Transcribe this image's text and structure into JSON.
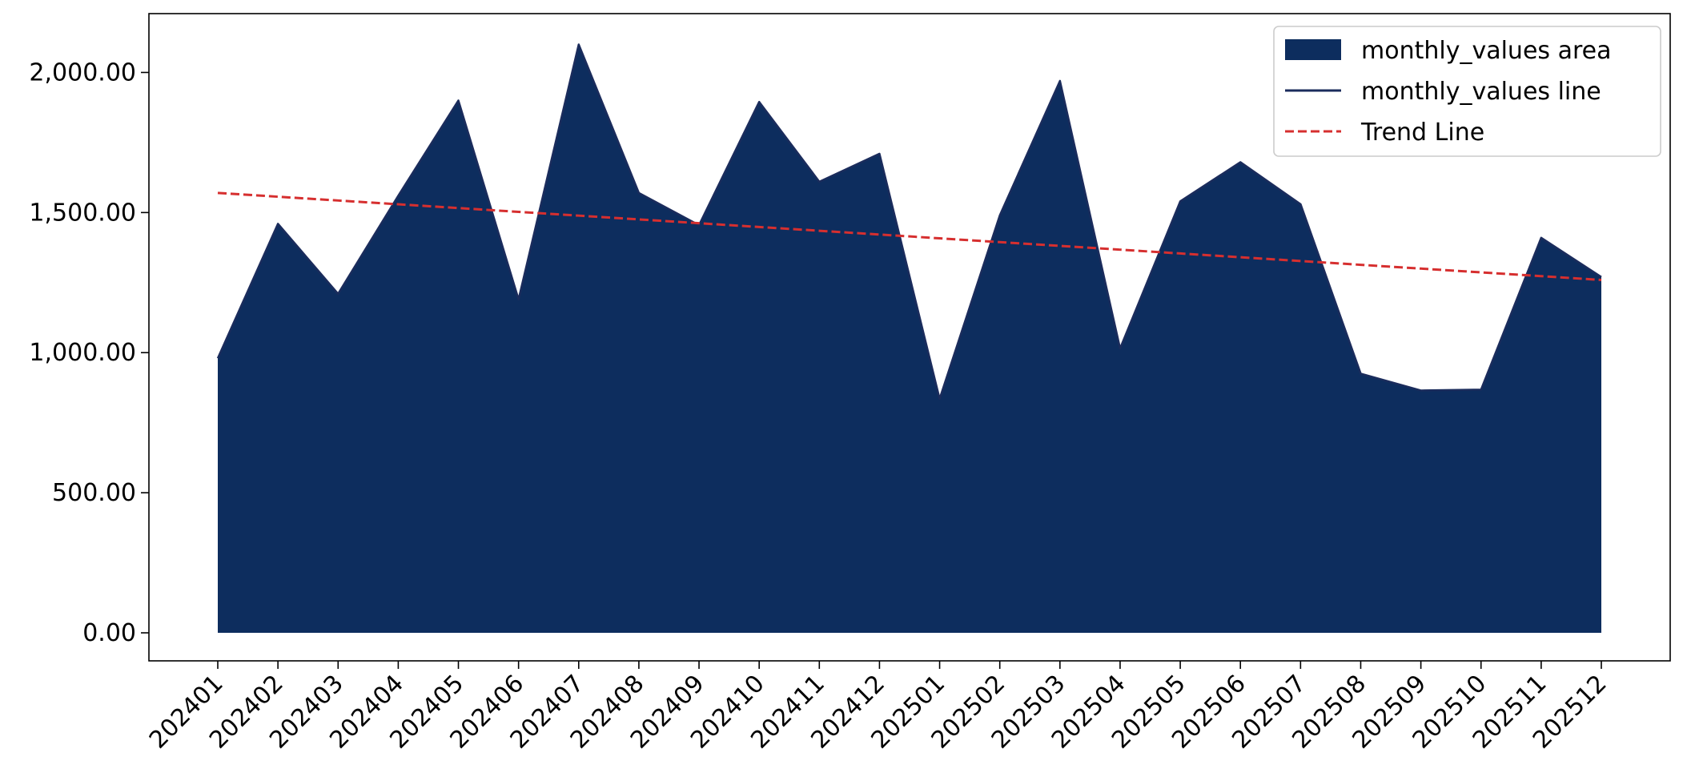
{
  "chart_data": {
    "type": "area",
    "title": "",
    "xlabel": "",
    "ylabel": "",
    "categories": [
      "202401",
      "202402",
      "202403",
      "202404",
      "202405",
      "202406",
      "202407",
      "202408",
      "202409",
      "202410",
      "202411",
      "202412",
      "202501",
      "202502",
      "202503",
      "202504",
      "202505",
      "202506",
      "202507",
      "202508",
      "202509",
      "202510",
      "202511",
      "202512"
    ],
    "series": [
      {
        "name": "monthly_values area",
        "kind": "area",
        "color": "#0d2d5e",
        "values": [
          980,
          1460,
          1210,
          1560,
          1900,
          1190,
          2100,
          1570,
          1455,
          1895,
          1610,
          1710,
          835,
          1490,
          1970,
          1015,
          1540,
          1680,
          1530,
          925,
          865,
          868,
          1410,
          1270
        ]
      },
      {
        "name": "monthly_values line",
        "kind": "line",
        "color": "#1b2c5c",
        "values": [
          980,
          1460,
          1210,
          1560,
          1900,
          1190,
          2100,
          1570,
          1455,
          1895,
          1610,
          1710,
          835,
          1490,
          1970,
          1015,
          1540,
          1680,
          1530,
          925,
          865,
          868,
          1410,
          1270
        ]
      },
      {
        "name": "Trend Line",
        "kind": "line",
        "style": "dashed",
        "color": "#d62f2f",
        "values": [
          1570,
          1556.5,
          1543,
          1529.5,
          1516,
          1502.5,
          1489,
          1475.5,
          1462,
          1448.5,
          1435,
          1421.5,
          1408,
          1394.5,
          1381,
          1367.5,
          1354,
          1340.5,
          1327,
          1313.5,
          1300,
          1286.5,
          1273,
          1259.5
        ]
      }
    ],
    "yticks": [
      "0.00",
      "500.00",
      "1,000.00",
      "1,500.00",
      "2,000.00"
    ],
    "ytick_values": [
      0,
      500,
      1000,
      1500,
      2000
    ],
    "ylim": [
      -100,
      2210
    ],
    "grid": false,
    "legend": "top-right"
  }
}
